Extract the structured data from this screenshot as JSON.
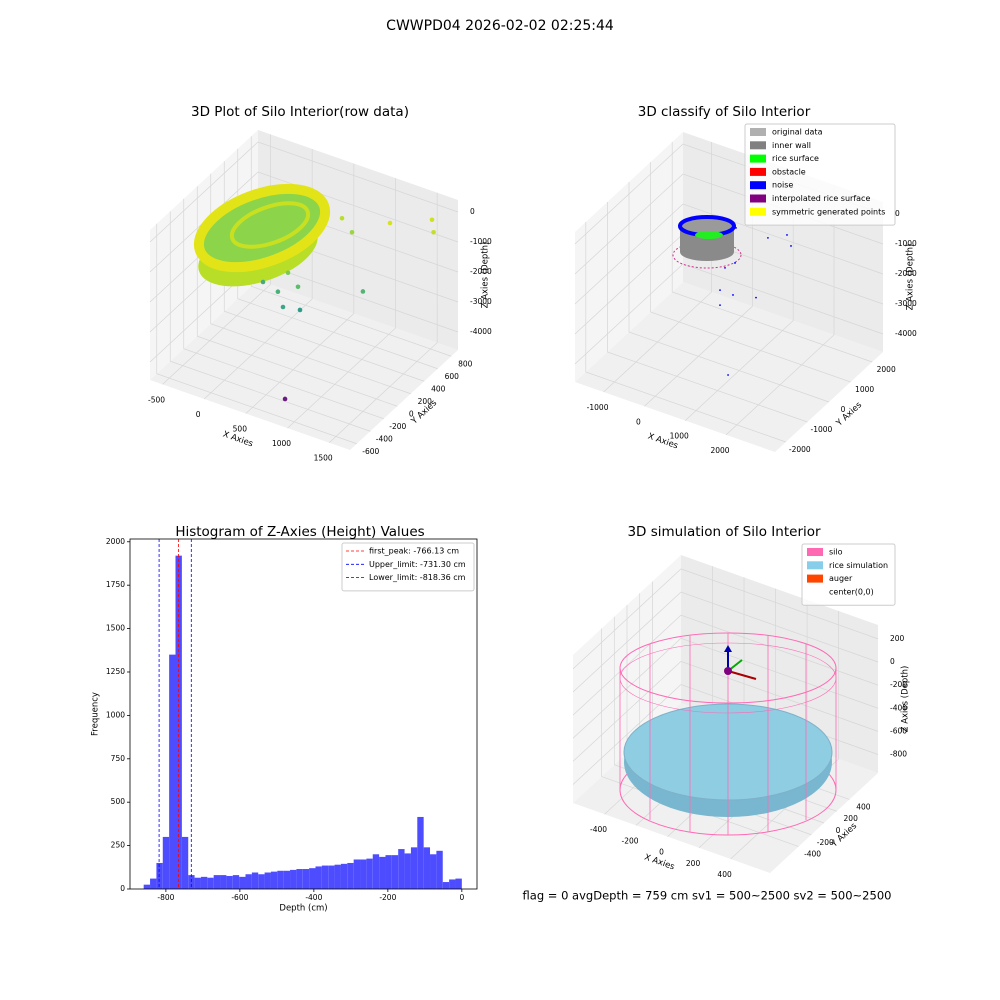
{
  "title": "CWWPD04 2026-02-02 02:25:44",
  "footer": "flag = 0    avgDepth = 759 cm  sv1 = 500~2500  sv2 = 500~2500",
  "chart_data": [
    {
      "type": "scatter3d",
      "title": "3D Plot of Silo Interior(row data)",
      "xlabel": "X Axies",
      "ylabel": "Y Axies",
      "zlabel": "Z Axies (Depth)",
      "xlim": [
        -650,
        1750
      ],
      "ylim": [
        -700,
        900
      ],
      "zlim": [
        -4600,
        400
      ],
      "xticks": [
        -500,
        0,
        500,
        1000,
        1500
      ],
      "yticks": [
        -600,
        -400,
        -200,
        0,
        200,
        400,
        600,
        800
      ],
      "zticks": [
        0,
        -1000,
        -2000,
        -3000,
        -4000
      ],
      "grid": true,
      "series": [
        {
          "x": [
            930,
            745,
            541,
            480,
            301,
            721,
            601,
            1500,
            601,
            1177,
            1681,
            1700,
            721
          ],
          "y": [
            -650,
            -200,
            -200,
            -200,
            -200,
            -200,
            -200,
            -200,
            600,
            600,
            600,
            600,
            600
          ],
          "z": [
            -3800,
            -1950,
            -2050,
            -1600,
            -1450,
            -1200,
            -850,
            -600,
            -700,
            -300,
            300,
            -100,
            -1050
          ],
          "colors": [
            "#6a1b80",
            "#2f9c8a",
            "#3aa58a",
            "#4cb07a",
            "#45aa80",
            "#5cbd6a",
            "#7ac95a",
            "#52b574",
            "#b8de2a",
            "#d6e21d",
            "#cfe022",
            "#c5df26",
            "#9ad640"
          ]
        }
      ]
    },
    {
      "type": "scatter3d",
      "title": "3D classify of Silo Interior",
      "xlabel": "X Axies",
      "ylabel": "Y Axies",
      "zlabel": "Z Axies (Depth)",
      "xlim": [
        -1700,
        3200
      ],
      "ylim": [
        -2500,
        2500
      ],
      "zlim": [
        -4600,
        400
      ],
      "xticks": [
        -1000,
        0,
        1000,
        2000
      ],
      "yticks": [
        -2000,
        -1000,
        0,
        1000,
        2000
      ],
      "zticks": [
        0,
        -1000,
        -2000,
        -3000,
        -4000
      ],
      "grid": true,
      "legend": "upper right",
      "series": [
        {
          "name": "original data",
          "color": "#b0b0b0"
        },
        {
          "name": "inner wall",
          "color": "#808080"
        },
        {
          "name": "rice surface",
          "color": "#00ff00"
        },
        {
          "name": "obstacle",
          "color": "#ff0000"
        },
        {
          "name": "noise",
          "color": "#0000ff",
          "x": [
            910,
            1377,
            1475,
            128,
            103,
            -142,
            -264,
            54,
            618,
            -264,
            2050
          ],
          "y": [
            1500,
            1500,
            1500,
            1500,
            1500,
            1500,
            1500,
            1500,
            1500,
            1500,
            -2500
          ],
          "z": [
            -1220,
            -900,
            -1220,
            -1260,
            -2440,
            -2720,
            -3520,
            -3530,
            -3350,
            -4020,
            -2580
          ]
        },
        {
          "name": "interpolated rice surface",
          "color": "#800080"
        },
        {
          "name": "symmetric generated points",
          "color": "#ffff00"
        }
      ]
    },
    {
      "type": "histogram",
      "title": "Histogram of Z-Axies (Height) Values",
      "xlabel": "Depth (cm)",
      "ylabel": "Frequency",
      "color": "#4d4dff",
      "xlim": [
        -897,
        41
      ],
      "ylim": [
        0,
        2016
      ],
      "xticks": [
        -800,
        -600,
        -400,
        -200,
        0
      ],
      "yticks": [
        0,
        250,
        500,
        750,
        1000,
        1250,
        1500,
        1750,
        2000
      ],
      "bins": [
        -860,
        -842.8,
        -825.6,
        -808.4,
        -791.2,
        -774,
        -756.8,
        -739.6,
        -722.4,
        -705.2,
        -688,
        -670.8,
        -653.6,
        -636.4,
        -619.2,
        -602,
        -584.8,
        -567.6,
        -550.4,
        -533.2,
        -516,
        -498.8,
        -481.6,
        -464.4,
        -447.2,
        -430,
        -412.8,
        -395.6,
        -378.4,
        -361.2,
        -344,
        -326.8,
        -309.6,
        -292.4,
        -275.2,
        -258,
        -240.8,
        -223.6,
        -206.4,
        -189.2,
        -172,
        -154.8,
        -137.6,
        -120.4,
        -103.2,
        -86,
        -68.8,
        -51.6,
        -34.4,
        -17.2,
        0
      ],
      "values": [
        25,
        60,
        150,
        300,
        1350,
        1920,
        300,
        80,
        65,
        70,
        65,
        80,
        80,
        75,
        80,
        70,
        85,
        95,
        85,
        95,
        100,
        105,
        105,
        110,
        115,
        115,
        120,
        130,
        135,
        135,
        140,
        145,
        150,
        170,
        170,
        175,
        200,
        185,
        195,
        195,
        230,
        205,
        240,
        415,
        240,
        200,
        220,
        40,
        55,
        60
      ],
      "legend": "upper right",
      "vlines": [
        {
          "label": "first_peak: -766.13 cm",
          "value": -766.13,
          "color": "#ff0000"
        },
        {
          "label": "Upper_limit: -731.30 cm",
          "value": -731.3,
          "color": "#0000ff"
        },
        {
          "label": "Lower_limit: -818.36 cm",
          "value": -818.36,
          "color": "#0000ff"
        }
      ]
    },
    {
      "type": "scatter3d",
      "title": "3D simulation of Silo Interior",
      "xlabel": "X Axies",
      "ylabel": "Y Axies",
      "zlabel": "Z Axies (Depth)",
      "xlim": [
        -600,
        650
      ],
      "ylim": [
        -850,
        850
      ],
      "zlim": [
        -960,
        320
      ],
      "xticks": [
        -400,
        -200,
        0,
        200,
        400
      ],
      "yticks": [
        -400,
        -200,
        0,
        200,
        400
      ],
      "zticks": [
        200,
        0,
        -200,
        -400,
        -600,
        -800
      ],
      "grid": true,
      "legend": "upper right",
      "series": [
        {
          "name": "silo",
          "color": "#ff69b4"
        },
        {
          "name": "rice simulation",
          "color": "#87ceeb"
        },
        {
          "name": "auger",
          "color": "#ff4500"
        },
        {
          "name": "center(0,0)",
          "color": "#ffffff"
        }
      ]
    }
  ]
}
